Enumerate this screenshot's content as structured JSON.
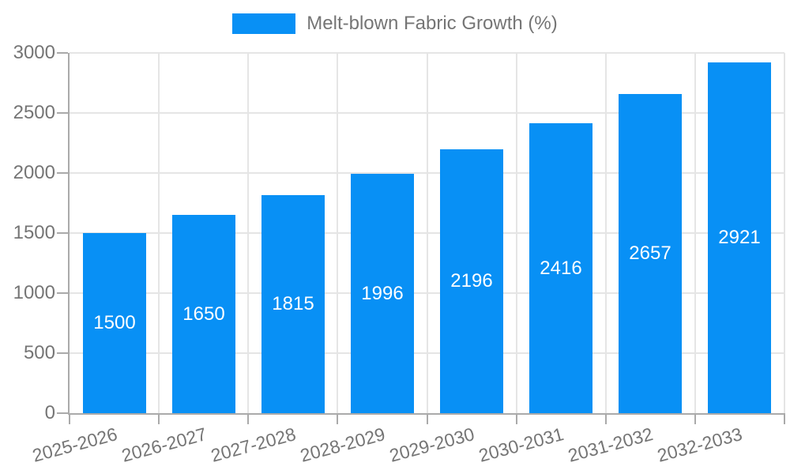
{
  "legend": {
    "position": "top-center"
  },
  "chart_data": {
    "type": "bar",
    "title": "",
    "categories": [
      "2025-2026",
      "2026-2027",
      "2027-2028",
      "2028-2029",
      "2029-2030",
      "2030-2031",
      "2031-2032",
      "2032-2033"
    ],
    "series": [
      {
        "name": "Melt-blown Fabric Growth (%)",
        "values": [
          1500,
          1650,
          1815,
          1996,
          2196,
          2416,
          2657,
          2921
        ]
      }
    ],
    "xlabel": "",
    "ylabel": "",
    "ylim": [
      0,
      3000
    ],
    "yticks": [
      0,
      500,
      1000,
      1500,
      2000,
      2500,
      3000
    ],
    "grid": true,
    "legend_position": "top",
    "value_labels": "inside-center",
    "x_label_rotation_deg": -15,
    "colors": {
      "bar": "#0890f5",
      "value_label": "#ffffff",
      "grid": "#e5e5e5",
      "axis": "#aaaaaa",
      "text": "#757575"
    }
  }
}
